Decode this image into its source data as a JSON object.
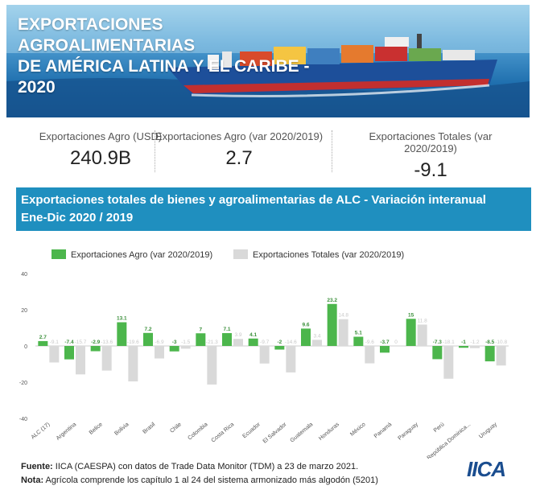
{
  "banner": {
    "title_line1": "EXPORTACIONES AGROALIMENTARIAS",
    "title_line2": "DE AMÉRICA LATINA Y EL CARIBE -",
    "title_line3": "2020"
  },
  "kpis": [
    {
      "label": "Exportaciones Agro (USD)",
      "value": "240.9B"
    },
    {
      "label": "Exportaciones Agro (var 2020/2019)",
      "value": "2.7"
    },
    {
      "label": "Exportaciones Totales (var 2020/2019)",
      "value": "-9.1"
    }
  ],
  "section": {
    "title_line1": "Exportaciones totales de bienes y agroalimentarias de ALC - Variación interanual",
    "title_line2": "Ene-Dic 2020 / 2019"
  },
  "colors": {
    "agro": "#4cb64c",
    "totales": "#d9d9d9",
    "header": "#1f8fbf",
    "logo": "#1a4d8f"
  },
  "chart_data": {
    "type": "bar",
    "categories": [
      "ALC (17)",
      "Argentina",
      "Belice",
      "Bolivia",
      "Brasil",
      "Chile",
      "Colombia",
      "Costa Rica",
      "Ecuador",
      "El Salvador",
      "Guatemala",
      "Honduras",
      "México",
      "Panamá",
      "Paraguay",
      "Perú",
      "República Dominica...",
      "Uruguay"
    ],
    "series": [
      {
        "name": "Exportaciones Agro (var 2020/2019)",
        "values": [
          2.7,
          -7.4,
          -2.9,
          13.1,
          7.2,
          -3,
          7,
          7.1,
          4.1,
          -2,
          9.6,
          23.2,
          5.1,
          -3.7,
          15,
          -7.3,
          -1,
          -8.5
        ]
      },
      {
        "name": "Exportaciones Totales (var 2020/2019)",
        "values": [
          -9.1,
          -15.7,
          -13.6,
          -19.6,
          -6.9,
          -1.5,
          -21.3,
          3.9,
          -9.7,
          -14.6,
          3.4,
          14.8,
          -9.6,
          0,
          11.8,
          -18.1,
          -1.2,
          -10.8
        ]
      }
    ],
    "ylim": [
      -40,
      40
    ],
    "yticks": [
      40,
      20,
      0,
      -20,
      -40
    ],
    "legend_position": "top-left"
  },
  "footer": {
    "fuente_label": "Fuente:",
    "fuente_text": " IICA (CAESPA) con datos de Trade Data Monitor (TDM) a 23 de marzo 2021.",
    "nota_label": "Nota:",
    "nota_text": " Agrícola comprende los capítulo 1 al 24 del sistema armonizado más algodón (5201)"
  },
  "logo_text": "IICA"
}
